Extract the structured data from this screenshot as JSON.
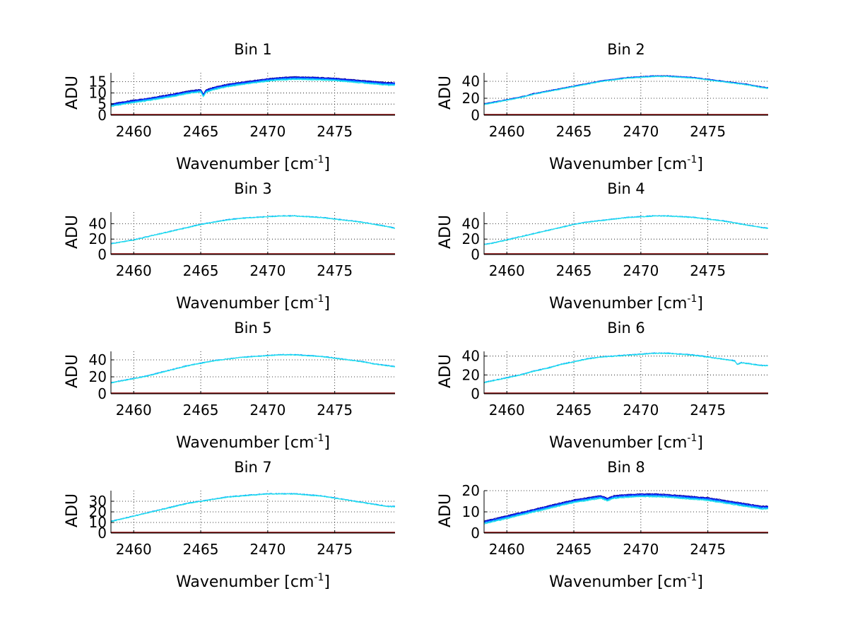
{
  "chart_data": [
    {
      "type": "line",
      "title": "Bin 1",
      "xlabel_text": "Wavenumber [cm",
      "xlabel_sup": "-1",
      "xlabel_close": "]",
      "ylabel": "ADU",
      "xlim": [
        2458.3,
        2479.5
      ],
      "ylim": [
        0,
        19
      ],
      "xticks": [
        2460,
        2465,
        2470,
        2475
      ],
      "xtick_labels": [
        "2460",
        "2465",
        "2470",
        "2475"
      ],
      "yticks": [
        0,
        5,
        10,
        15
      ],
      "ytick_labels": [
        "0",
        "5",
        "10",
        "15"
      ],
      "grid": true,
      "spread": 1.2,
      "series_colors": [
        "#00008f",
        "#0000ff",
        "#0050ff",
        "#0090ff",
        "#00c8ff",
        "#2ee6e6"
      ],
      "baseline_color": "#800000",
      "x": [
        2458.3,
        2459,
        2460,
        2461,
        2462,
        2463,
        2464,
        2465,
        2465.2,
        2465.4,
        2466,
        2467,
        2468,
        2469,
        2470,
        2471,
        2472,
        2473,
        2474,
        2475,
        2476,
        2477,
        2478,
        2479,
        2479.5
      ],
      "y": [
        4.5,
        5.2,
        6.2,
        7.0,
        8.0,
        9.0,
        10.2,
        11.0,
        8.8,
        10.8,
        12.0,
        13.3,
        14.2,
        15.0,
        15.8,
        16.3,
        16.6,
        16.5,
        16.3,
        16.0,
        15.5,
        15.0,
        14.5,
        14.0,
        14.0
      ]
    },
    {
      "type": "line",
      "title": "Bin 2",
      "xlabel_text": "Wavenumber [cm",
      "xlabel_sup": "-1",
      "xlabel_close": "]",
      "ylabel": "ADU",
      "xlim": [
        2458.3,
        2479.5
      ],
      "ylim": [
        0,
        50
      ],
      "xticks": [
        2460,
        2465,
        2470,
        2475
      ],
      "xtick_labels": [
        "2460",
        "2465",
        "2470",
        "2475"
      ],
      "yticks": [
        0,
        20,
        40
      ],
      "ytick_labels": [
        "0",
        "20",
        "40"
      ],
      "grid": true,
      "spread": 0.9,
      "series_colors": [
        "#00008f",
        "#0000ff",
        "#0050ff",
        "#0090ff",
        "#00c8ff",
        "#2ee6e6"
      ],
      "baseline_color": "#800000",
      "x": [
        2458.3,
        2459,
        2460,
        2461,
        2462,
        2463,
        2464,
        2465,
        2466,
        2467,
        2468,
        2469,
        2470,
        2471,
        2472,
        2473,
        2474,
        2475,
        2476,
        2477,
        2478,
        2479,
        2479.5
      ],
      "y": [
        13,
        15,
        18,
        21,
        25,
        28,
        31,
        34,
        37,
        40,
        42,
        44,
        45,
        46,
        46,
        45,
        44,
        42,
        40,
        38,
        36,
        33,
        32
      ]
    },
    {
      "type": "line",
      "title": "Bin 3",
      "xlabel_text": "Wavenumber [cm",
      "xlabel_sup": "-1",
      "xlabel_close": "]",
      "ylabel": "ADU",
      "xlim": [
        2458.3,
        2479.5
      ],
      "ylim": [
        0,
        55
      ],
      "xticks": [
        2460,
        2465,
        2470,
        2475
      ],
      "xtick_labels": [
        "2460",
        "2465",
        "2470",
        "2475"
      ],
      "yticks": [
        0,
        20,
        40
      ],
      "ytick_labels": [
        "0",
        "20",
        "40"
      ],
      "grid": true,
      "spread": 0.5,
      "series_colors": [
        "#0090ff",
        "#00c8ff",
        "#2ee6e6"
      ],
      "baseline_color": "#800000",
      "x": [
        2458.3,
        2459,
        2460,
        2461,
        2462,
        2463,
        2464,
        2465,
        2466,
        2467,
        2468,
        2469,
        2470,
        2471,
        2472,
        2473,
        2474,
        2475,
        2476,
        2477,
        2478,
        2479,
        2479.5
      ],
      "y": [
        14,
        16,
        19,
        23,
        27,
        31,
        35,
        39,
        42,
        45,
        47,
        48,
        49,
        50,
        50,
        49,
        48,
        46,
        44,
        42,
        39,
        36,
        34
      ]
    },
    {
      "type": "line",
      "title": "Bin 4",
      "xlabel_text": "Wavenumber [cm",
      "xlabel_sup": "-1",
      "xlabel_close": "]",
      "ylabel": "ADU",
      "xlim": [
        2458.3,
        2479.5
      ],
      "ylim": [
        0,
        55
      ],
      "xticks": [
        2460,
        2465,
        2470,
        2475
      ],
      "xtick_labels": [
        "2460",
        "2465",
        "2470",
        "2475"
      ],
      "yticks": [
        0,
        20,
        40
      ],
      "ytick_labels": [
        "0",
        "20",
        "40"
      ],
      "grid": true,
      "spread": 0.5,
      "series_colors": [
        "#0090ff",
        "#00c8ff",
        "#2ee6e6"
      ],
      "baseline_color": "#800000",
      "x": [
        2458.3,
        2459,
        2460,
        2461,
        2462,
        2463,
        2464,
        2465,
        2466,
        2467,
        2468,
        2469,
        2470,
        2471,
        2472,
        2473,
        2474,
        2475,
        2476,
        2477,
        2478,
        2479,
        2479.5
      ],
      "y": [
        13,
        15,
        19,
        23,
        27,
        31,
        35,
        39,
        42,
        44,
        46,
        48,
        49,
        50,
        50,
        49,
        48,
        46,
        44,
        41,
        38,
        35,
        34
      ]
    },
    {
      "type": "line",
      "title": "Bin 5",
      "xlabel_text": "Wavenumber [cm",
      "xlabel_sup": "-1",
      "xlabel_close": "]",
      "ylabel": "ADU",
      "xlim": [
        2458.3,
        2479.5
      ],
      "ylim": [
        0,
        50
      ],
      "xticks": [
        2460,
        2465,
        2470,
        2475
      ],
      "xtick_labels": [
        "2460",
        "2465",
        "2470",
        "2475"
      ],
      "yticks": [
        0,
        20,
        40
      ],
      "ytick_labels": [
        "0",
        "20",
        "40"
      ],
      "grid": true,
      "spread": 0.5,
      "series_colors": [
        "#0090ff",
        "#00c8ff",
        "#2ee6e6"
      ],
      "baseline_color": "#800000",
      "x": [
        2458.3,
        2459,
        2460,
        2461,
        2462,
        2463,
        2464,
        2465,
        2466,
        2467,
        2468,
        2469,
        2470,
        2471,
        2472,
        2473,
        2474,
        2475,
        2476,
        2477,
        2478,
        2479,
        2479.5
      ],
      "y": [
        13,
        15,
        18,
        21,
        25,
        29,
        33,
        36,
        39,
        41,
        43,
        44,
        45,
        46,
        46,
        45,
        44,
        42,
        40,
        38,
        35,
        33,
        32
      ]
    },
    {
      "type": "line",
      "title": "Bin 6",
      "xlabel_text": "Wavenumber [cm",
      "xlabel_sup": "-1",
      "xlabel_close": "]",
      "ylabel": "ADU",
      "xlim": [
        2458.3,
        2479.5
      ],
      "ylim": [
        0,
        45
      ],
      "xticks": [
        2460,
        2465,
        2470,
        2475
      ],
      "xtick_labels": [
        "2460",
        "2465",
        "2470",
        "2475"
      ],
      "yticks": [
        0,
        20,
        40
      ],
      "ytick_labels": [
        "0",
        "20",
        "40"
      ],
      "grid": true,
      "spread": 0.5,
      "series_colors": [
        "#0090ff",
        "#00c8ff",
        "#2ee6e6"
      ],
      "baseline_color": "#800000",
      "x": [
        2458.3,
        2459,
        2460,
        2461,
        2462,
        2463,
        2464,
        2465,
        2466,
        2467,
        2468,
        2469,
        2470,
        2471,
        2472,
        2473,
        2474,
        2475,
        2476,
        2477,
        2477.2,
        2477.5,
        2478,
        2479,
        2479.5
      ],
      "y": [
        12,
        14,
        17,
        20,
        24,
        27,
        31,
        34,
        37,
        39,
        40,
        41,
        42,
        43,
        43,
        42,
        41,
        39,
        37,
        35,
        31,
        33,
        32,
        30,
        30
      ]
    },
    {
      "type": "line",
      "title": "Bin 7",
      "xlabel_text": "Wavenumber [cm",
      "xlabel_sup": "-1",
      "xlabel_close": "]",
      "ylabel": "ADU",
      "xlim": [
        2458.3,
        2479.5
      ],
      "ylim": [
        0,
        40
      ],
      "xticks": [
        2460,
        2465,
        2470,
        2475
      ],
      "xtick_labels": [
        "2460",
        "2465",
        "2470",
        "2475"
      ],
      "yticks": [
        0,
        10,
        20,
        30
      ],
      "ytick_labels": [
        "0",
        "10",
        "20",
        "30"
      ],
      "grid": true,
      "spread": 0.5,
      "series_colors": [
        "#0090ff",
        "#00c8ff",
        "#2ee6e6"
      ],
      "baseline_color": "#800000",
      "x": [
        2458.3,
        2459,
        2460,
        2461,
        2462,
        2463,
        2464,
        2465,
        2466,
        2467,
        2468,
        2469,
        2470,
        2471,
        2472,
        2473,
        2474,
        2475,
        2476,
        2477,
        2478,
        2479,
        2479.5
      ],
      "y": [
        11,
        13,
        16,
        19,
        22,
        25,
        28,
        30,
        32,
        34,
        35,
        36,
        37,
        37,
        37,
        36,
        35,
        33,
        31,
        29,
        27,
        25,
        25
      ]
    },
    {
      "type": "line",
      "title": "Bin 8",
      "xlabel_text": "Wavenumber [cm",
      "xlabel_sup": "-1",
      "xlabel_close": "]",
      "ylabel": "ADU",
      "xlim": [
        2458.3,
        2479.5
      ],
      "ylim": [
        0,
        20
      ],
      "xticks": [
        2460,
        2465,
        2470,
        2475
      ],
      "xtick_labels": [
        "2460",
        "2465",
        "2470",
        "2475"
      ],
      "yticks": [
        0,
        10,
        20
      ],
      "ytick_labels": [
        "0",
        "10",
        "20"
      ],
      "grid": true,
      "spread": 1.4,
      "series_colors": [
        "#00008f",
        "#0000ff",
        "#0050ff",
        "#0090ff",
        "#00c8ff",
        "#2ee6e6"
      ],
      "baseline_color": "#800000",
      "x": [
        2458.3,
        2459,
        2460,
        2461,
        2462,
        2463,
        2464,
        2465,
        2466,
        2467,
        2467.5,
        2468,
        2469,
        2470,
        2471,
        2472,
        2473,
        2474,
        2475,
        2476,
        2477,
        2478,
        2479,
        2479.5
      ],
      "y": [
        5,
        6,
        7.5,
        9,
        10.5,
        12,
        13.5,
        15,
        16,
        17,
        15.8,
        17,
        17.5,
        17.8,
        17.8,
        17.5,
        17,
        16.5,
        16,
        15,
        14,
        13,
        12,
        12
      ]
    }
  ]
}
